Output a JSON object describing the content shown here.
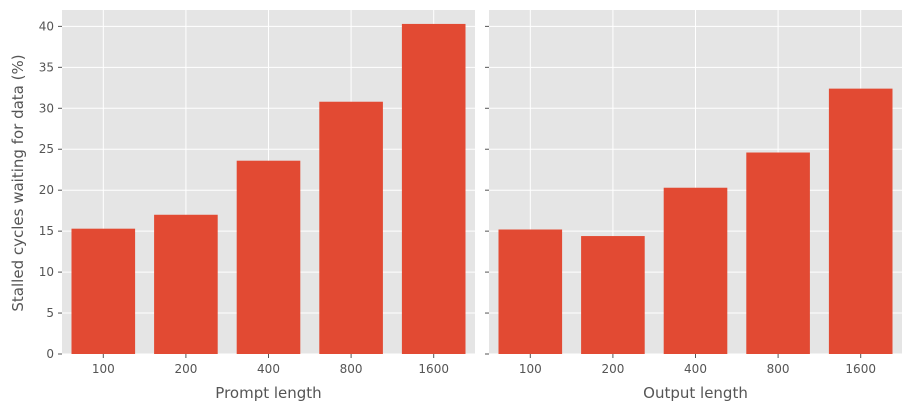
{
  "figure": {
    "ylabel": "Stalled cycles waiting for data (%)"
  },
  "colors": {
    "bar": "#e24a33",
    "panel_bg": "#e5e5e5",
    "grid": "#ffffff",
    "text": "#555555"
  },
  "chart_data": [
    {
      "type": "bar",
      "categories": [
        "100",
        "200",
        "400",
        "800",
        "1600"
      ],
      "values": [
        15.3,
        17.0,
        23.6,
        30.8,
        40.3
      ],
      "xlabel": "Prompt length",
      "ylabel": "Stalled cycles waiting for data (%)",
      "ylim": [
        0,
        42
      ],
      "yticks": [
        0,
        5,
        10,
        15,
        20,
        25,
        30,
        35,
        40
      ],
      "grid": true
    },
    {
      "type": "bar",
      "categories": [
        "100",
        "200",
        "400",
        "800",
        "1600"
      ],
      "values": [
        15.2,
        14.4,
        20.3,
        24.6,
        32.4
      ],
      "xlabel": "Output length",
      "ylim": [
        0,
        42
      ],
      "yticks": [
        0,
        5,
        10,
        15,
        20,
        25,
        30,
        35,
        40
      ],
      "grid": true,
      "sharey": true
    }
  ]
}
